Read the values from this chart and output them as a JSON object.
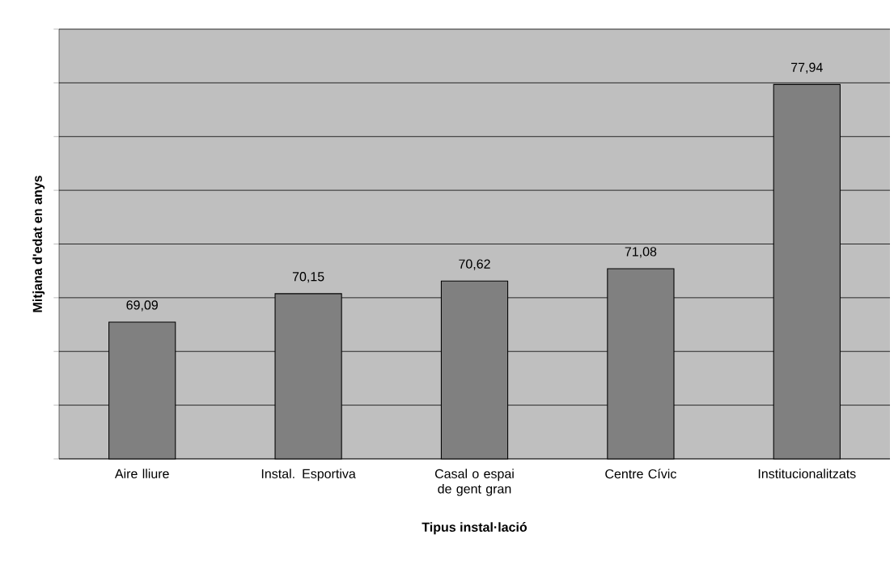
{
  "chart_data": {
    "type": "bar",
    "xlabel": "Tipus instal·lació",
    "ylabel": "Mitjana d'edat en anys",
    "categories": [
      "Aire lliure",
      "Instal. Esportiva",
      "Casal o espai de gent gran",
      "Centre Cívic",
      "Institucionalitzats"
    ],
    "values": [
      69.09,
      70.15,
      70.62,
      71.08,
      77.94
    ],
    "value_labels": [
      "69,09",
      "70,15",
      "70,62",
      "71,08",
      "77,94"
    ],
    "color": "#808080",
    "ylim": [
      64,
      80
    ],
    "yticks": [
      {
        "value": 64,
        "label": null
      },
      {
        "value": 66,
        "label": null
      },
      {
        "value": 68,
        "label": null
      },
      {
        "value": 70,
        "label": null
      },
      {
        "value": 72,
        "label": null
      },
      {
        "value": 74,
        "label": null
      },
      {
        "value": 76,
        "label": null
      },
      {
        "value": 78,
        "label": null
      },
      {
        "value": 80,
        "label": null
      }
    ],
    "tick_labels": "x",
    "grid": "y"
  }
}
